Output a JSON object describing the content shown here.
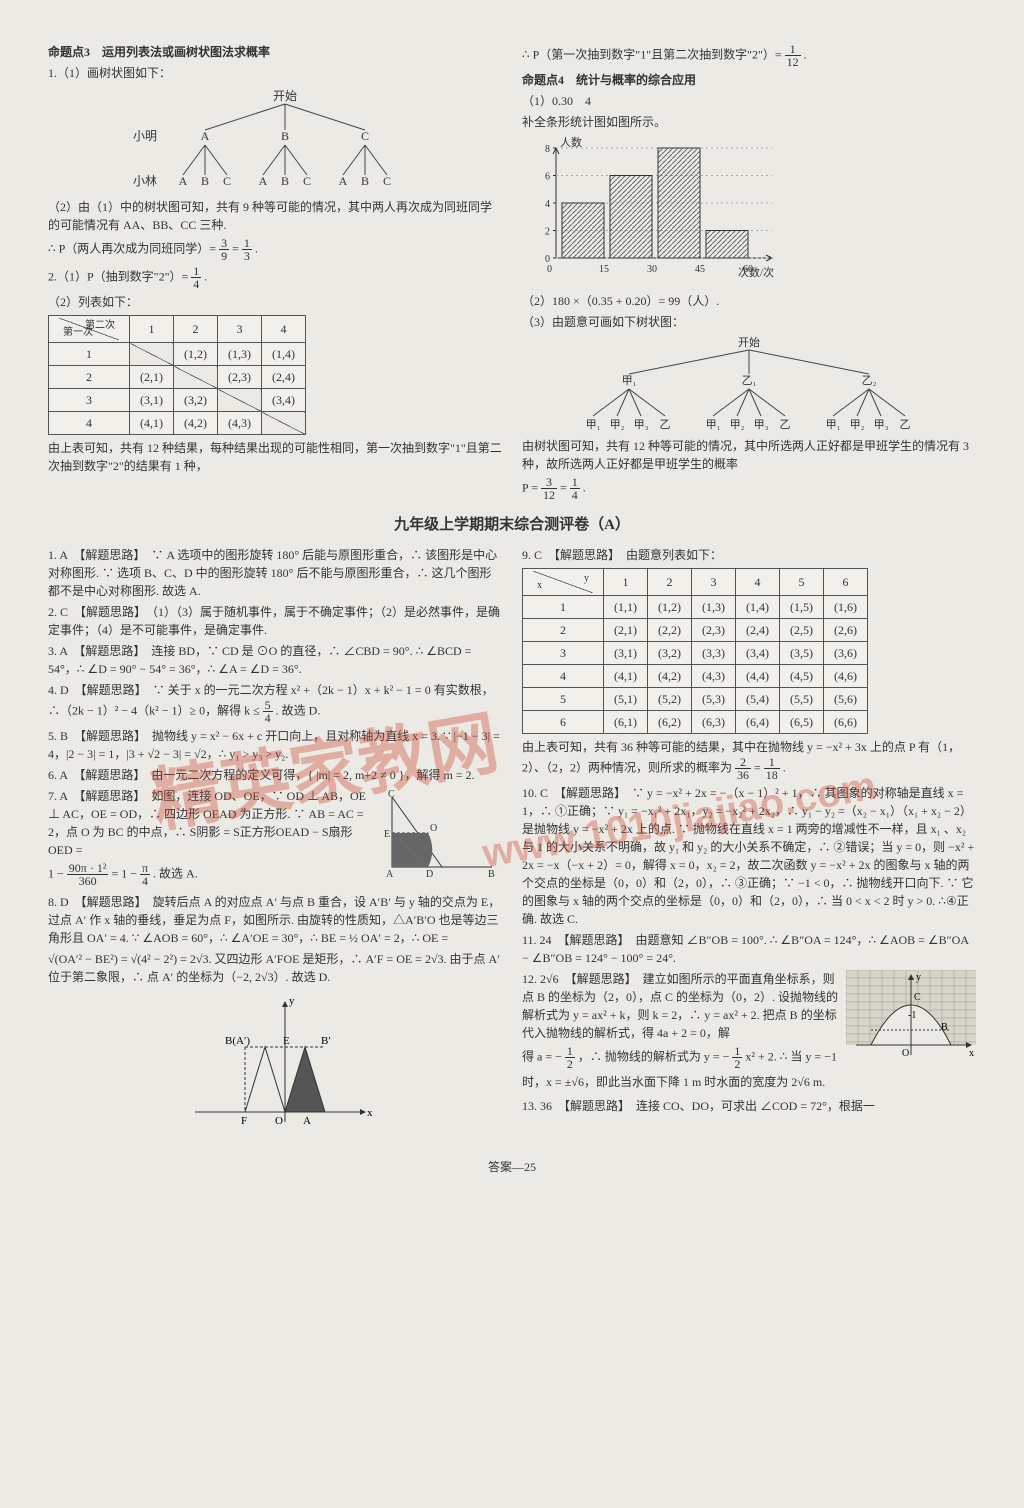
{
  "top": {
    "section3_title": "命题点3　运用列表法或画树状图法求概率",
    "q1_1": "1.（1）画树状图如下：",
    "tree1": {
      "root": "开始",
      "left_label": "小明",
      "level1": [
        "A",
        "B",
        "C"
      ],
      "left_label2": "小林",
      "level2": [
        "A",
        "B",
        "C",
        "A",
        "B",
        "C",
        "A",
        "B",
        "C"
      ],
      "stroke": "#444"
    },
    "q1_2a": "（2）由（1）中的树状图可知，共有 9 种等可能的情况，其中两人再次成为同班同学的可能情况有 AA、BB、CC 三种.",
    "q1_2b": "∴ P（两人再次成为同班同学）= ",
    "q1_2b_frac": {
      "n": "3",
      "d": "9"
    },
    "q1_2b_eq": " = ",
    "q1_2b_frac2": {
      "n": "1",
      "d": "3"
    },
    "q1_2b_end": ".",
    "q2_1": "2.（1）P（抽到数字\"2\"）= ",
    "q2_1_frac": {
      "n": "1",
      "d": "4"
    },
    "q2_1_end": ".",
    "q2_2_label": "（2）列表如下：",
    "table1": {
      "diag_top": "第二次",
      "diag_bot": "第一次",
      "cols": [
        "1",
        "2",
        "3",
        "4"
      ],
      "rows": [
        {
          "h": "1",
          "cells": [
            "",
            "(1,2)",
            "(1,3)",
            "(1,4)"
          ]
        },
        {
          "h": "2",
          "cells": [
            "(2,1)",
            "",
            "(2,3)",
            "(2,4)"
          ]
        },
        {
          "h": "3",
          "cells": [
            "(3,1)",
            "(3,2)",
            "",
            "(3,4)"
          ]
        },
        {
          "h": "4",
          "cells": [
            "(4,1)",
            "(4,2)",
            "(4,3)",
            ""
          ]
        }
      ]
    },
    "q2_after": "由上表可知，共有 12 种结果，每种结果出现的可能性相同，第一次抽到数字\"1\"且第二次抽到数字\"2\"的结果有 1 种，",
    "right_p": "∴ P（第一次抽到数字\"1\"且第二次抽到数字\"2\"）= ",
    "right_p_frac": {
      "n": "1",
      "d": "12"
    },
    "right_p_end": ".",
    "section4_title": "命题点4　统计与概率的综合应用",
    "section4_ans": "（1）0.30　4",
    "section4_text": "补全条形统计图如图所示。",
    "bar_chart": {
      "ylabel": "人数",
      "xlabel": "次数/次",
      "ymax": 8,
      "ytick_step": 2,
      "bins": [
        "15",
        "30",
        "45",
        "60"
      ],
      "heights": [
        4,
        6,
        8,
        2
      ],
      "bar_color": "#ffffff",
      "border_color": "#333",
      "hatch": true,
      "bg": "#eceae4"
    },
    "sec4_2": "（2）180 ×（0.35 + 0.20）= 99（人）.",
    "sec4_3": "（3）由题意可画如下树状图：",
    "tree2": {
      "root": "开始",
      "level1": [
        "甲₁",
        "乙₁",
        "乙₂"
      ],
      "level2": [
        [
          "甲₁",
          "甲₂",
          "甲₃",
          "乙"
        ],
        [
          "甲₁",
          "甲₂",
          "甲₃",
          "乙"
        ],
        [
          "甲₁",
          "甲₂",
          "甲₃",
          "乙"
        ]
      ],
      "stroke": "#444"
    },
    "sec4_after": "由树状图可知，共有 12 种等可能的情况，其中所选两人正好都是甲班学生的情况有 3 种，故所选两人正好都是甲班学生的概率",
    "sec4_p": "P = ",
    "sec4_p_frac": {
      "n": "3",
      "d": "12"
    },
    "sec4_p_eq": " = ",
    "sec4_p_frac2": {
      "n": "1",
      "d": "4"
    },
    "sec4_p_end": "."
  },
  "exam_title": "九年级上学期期末综合测评卷（A）",
  "examL": {
    "q1": "1. A　【解题思路】　∵ A 选项中的图形旋转 180° 后能与原图形重合，∴ 该图形是中心对称图形. ∵ 选项 B、C、D 中的图形旋转 180° 后不能与原图形重合，∴ 这几个图形都不是中心对称图形. 故选 A.",
    "q2": "2. C　【解题思路】　（1）（3）属于随机事件，属于不确定事件；（2）是必然事件，是确定事件；（4）是不可能事件，是确定事件.",
    "q3": "3. A　【解题思路】　连接 BD，∵ CD 是 ⊙O 的直径，∴ ∠CBD = 90°. ∴ ∠BCD = 54°，∴ ∠D = 90° − 54° = 36°，∴ ∠A = ∠D = 36°.",
    "q4a": "4. D　【解题思路】　∵ 关于 x 的一元二次方程 x² +（2k − 1）x + k² − 1 = 0 有实数根，∴（2k − 1）² − 4（k² − 1）≥ 0，解得 k ≤ ",
    "q4_frac": {
      "n": "5",
      "d": "4"
    },
    "q4b": ". 故选 D.",
    "q5": "5. B　【解题思路】　抛物线 y = x² − 6x + c 开口向上，且对称轴为直线 x = 3. ∵ |−1 − 3| = 4，|2 − 3| = 1，|3 + √2 − 3| = √2，∴ y₁ > y₃ > y₂.",
    "q6": "6. A　【解题思路】　由一元二次方程的定义可得，{ |m| = 2,  m+2 ≠ 0 }，解得 m = 2.",
    "q7": "7. A　【解题思路】　如图，连接 OD、OE，∵ OD ⊥ AB，OE ⊥ AC，OE = OD，∴ 四边形 OEAD 为正方形. ∵ AB = AC = 2，点 O 为 BC 的中点，∴ S阴影 = S正方形OEAD − S扇形OED =",
    "q7b": "1 − ",
    "q7_frac": {
      "n": "90π · 1²",
      "d": "360"
    },
    "q7c": " = 1 − ",
    "q7_frac2": {
      "n": "π",
      "d": "4"
    },
    "q7d": ". 故选 A.",
    "q8": "8. D　【解题思路】　旋转后点 A 的对应点 A′ 与点 B 重合，设 A′B′ 与 y 轴的交点为 E，过点 A′ 作 x 轴的垂线，垂足为点 F，如图所示. 由旋转的性质知，△A′B′O 也是等边三角形且 OA′ = 4. ∵ ∠AOB = 60°，∴ ∠A′OE = 30°，∴ BE = ½ OA′ = 2，∴ OE =",
    "q8b": "√(OA′² − BE²) = √(4² − 2²) = 2√3. 又四边形 A′FOE 是矩形，∴ A′F = OE = 2√3. 由于点 A′ 位于第二象限，∴ 点 A′ 的坐标为（−2, 2√3）. 故选 D."
  },
  "examR": {
    "q9a": "9. C　【解题思路】　由题意列表如下：",
    "table2": {
      "diag_top": "y",
      "diag_bot": "x",
      "cols": [
        "1",
        "2",
        "3",
        "4",
        "5",
        "6"
      ],
      "rows": [
        {
          "h": "1",
          "cells": [
            "(1,1)",
            "(1,2)",
            "(1,3)",
            "(1,4)",
            "(1,5)",
            "(1,6)"
          ]
        },
        {
          "h": "2",
          "cells": [
            "(2,1)",
            "(2,2)",
            "(2,3)",
            "(2,4)",
            "(2,5)",
            "(2,6)"
          ]
        },
        {
          "h": "3",
          "cells": [
            "(3,1)",
            "(3,2)",
            "(3,3)",
            "(3,4)",
            "(3,5)",
            "(3,6)"
          ]
        },
        {
          "h": "4",
          "cells": [
            "(4,1)",
            "(4,2)",
            "(4,3)",
            "(4,4)",
            "(4,5)",
            "(4,6)"
          ]
        },
        {
          "h": "5",
          "cells": [
            "(5,1)",
            "(5,2)",
            "(5,3)",
            "(5,4)",
            "(5,5)",
            "(5,6)"
          ]
        },
        {
          "h": "6",
          "cells": [
            "(6,1)",
            "(6,2)",
            "(6,3)",
            "(6,4)",
            "(6,5)",
            "(6,6)"
          ]
        }
      ]
    },
    "q9b": "由上表可知，共有 36 种等可能的结果，其中在抛物线 y = −x² + 3x 上的点 P 有（1，2）、（2，2）两种情况，则所求的概率为 ",
    "q9_frac": {
      "n": "2",
      "d": "36"
    },
    "q9c": " = ",
    "q9_frac2": {
      "n": "1",
      "d": "18"
    },
    "q9d": ".",
    "q10": "10. C　【解题思路】　∵ y = −x² + 2x = −（x − 1）² + 1，∴ 其图象的对称轴是直线 x = 1，∴ ①正确；∵ y₁ = −x₁² + 2x₁，y₂ = −x₂² + 2x₂，∴ y₁ − y₂ =（x₂ − x₁）（x₁ + x₂ − 2）是抛物线 y = −x² + 2x 上的点. ∵ 抛物线在直线 x = 1 两旁的增减性不一样，且 x₁ 、x₂ 与 1 的大小关系不明确，故 y₁ 和 y₂ 的大小关系不确定，∴ ②错误；当 y = 0，则 −x² + 2x = −x（−x + 2）= 0，解得 x = 0，x₂ = 2，故二次函数 y = −x² + 2x 的图象与 x 轴的两个交点的坐标是（0，0）和（2，0），∴ ③正确；∵ −1 < 0，∴ 抛物线开口向下. ∵ 它的图象与 x 轴的两个交点的坐标是（0，0）和（2，0），∴ 当 0 < x < 2 时 y > 0. ∴④正确. 故选 C.",
    "q11": "11. 24　【解题思路】　由题意知 ∠B″OB = 100°. ∴ ∠B″OA = 124°，∴ ∠AOB = ∠B″OA − ∠B″OB = 124° − 100° = 24°.",
    "q12a": "12. 2√6　【解题思路】　建立如图所示的平面直角坐标系，则点 B 的坐标为（2，0），点 C 的坐标为（0，2）. 设抛物线的解析式为 y = ax² + k，则 k = 2，∴ y = ax² + 2. 把点 B 的坐标代入抛物线的解析式，得 4a + 2 = 0，解",
    "q12b": "得 a = −",
    "q12_frac": {
      "n": "1",
      "d": "2"
    },
    "q12c": "，∴ 抛物线的解析式为 y = −",
    "q12_frac2": {
      "n": "1",
      "d": "2"
    },
    "q12d": " x² + 2. ∴ 当 y = −1",
    "q12e": "时，x = ±√6，即此当水面下降 1 m 时水面的宽度为 2√6 m.",
    "q13": "13. 36　【解题思路】　连接 CO、DO，可求出 ∠COD = 72°，根据一"
  },
  "footer": "答案—25",
  "watermark1": "精英家教网",
  "watermark2": "www.1010jiajiao.com"
}
